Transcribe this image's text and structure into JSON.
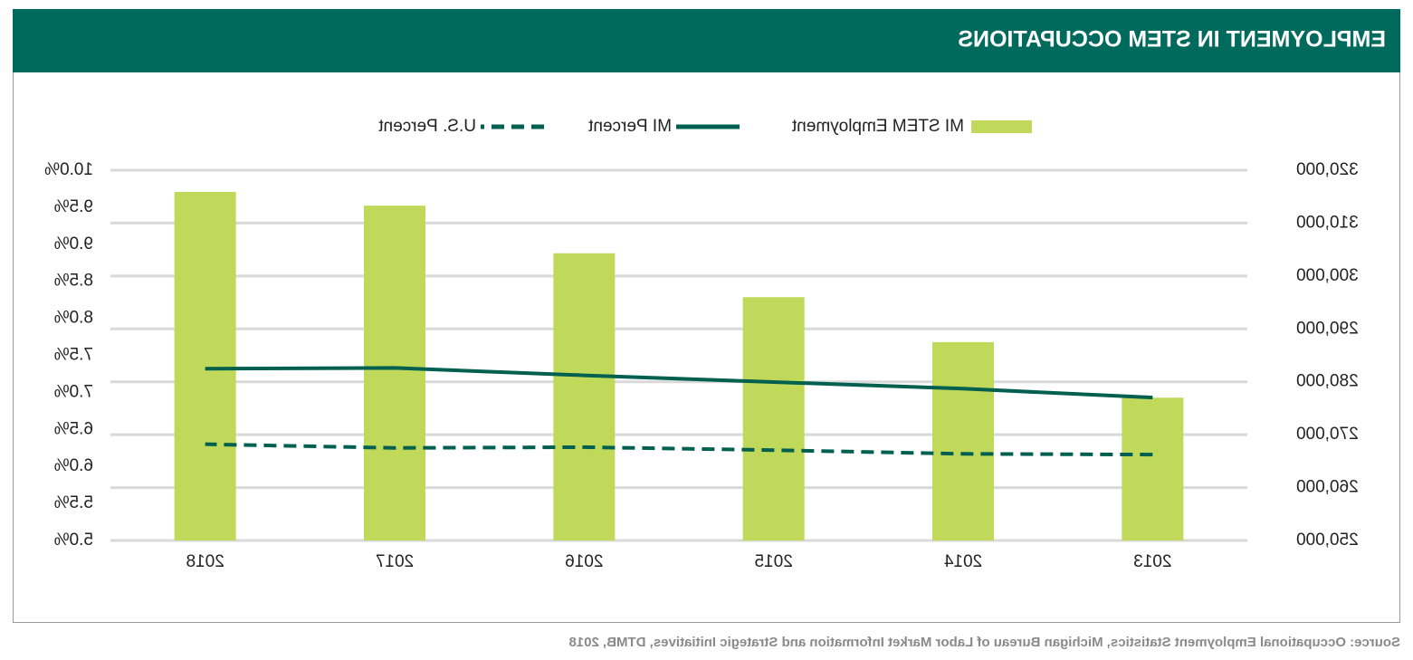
{
  "chart_data": {
    "type": "bar-line",
    "title": "EMPLOYMENT IN STEM OCCUPATIONS",
    "source": "Source: Occupational Employment Statistics, Michigan Bureau of Labor Market Information and Strategic Initiatives, DTMB, 2018",
    "categories": [
      "2013",
      "2014",
      "2015",
      "2016",
      "2017",
      "2018"
    ],
    "series": [
      {
        "name": "MI STEM Employment",
        "type": "bar",
        "color": "#c1d95a",
        "values": [
          277000,
          287500,
          296000,
          304300,
          313300,
          315900
        ]
      },
      {
        "name": "MI Percent",
        "type": "line",
        "axis": "y2",
        "color": "#00604f",
        "dashed": false,
        "values": [
          6.93,
          7.05,
          7.14,
          7.23,
          7.33,
          7.32
        ]
      },
      {
        "name": "U.S. Percent",
        "type": "line",
        "axis": "y2",
        "color": "#00604f",
        "dashed": true,
        "values": [
          6.16,
          6.17,
          6.22,
          6.26,
          6.25,
          6.3
        ]
      }
    ],
    "ylim": [
      250000,
      320000
    ],
    "yticks": [
      {
        "value": 250000,
        "label": "250,000"
      },
      {
        "value": 260000,
        "label": "260,000"
      },
      {
        "value": 270000,
        "label": "270,000"
      },
      {
        "value": 280000,
        "label": "280,000"
      },
      {
        "value": 290000,
        "label": "290,000"
      },
      {
        "value": 300000,
        "label": "300,000"
      },
      {
        "value": 310000,
        "label": "310,000"
      },
      {
        "value": 320000,
        "label": "320,000"
      }
    ],
    "y2lim": [
      5,
      10
    ],
    "y2ticks": [
      {
        "value": 5,
        "label": "5.0%"
      },
      {
        "value": 5.5,
        "label": "5.5%"
      },
      {
        "value": 6,
        "label": "6.0%"
      },
      {
        "value": 6.5,
        "label": "6.5%"
      },
      {
        "value": 7,
        "label": "7.0%"
      },
      {
        "value": 7.5,
        "label": "7.5%"
      },
      {
        "value": 8,
        "label": "8.0%"
      },
      {
        "value": 8.5,
        "label": "8.5%"
      },
      {
        "value": 9,
        "label": "9.0%"
      },
      {
        "value": 9.5,
        "label": "9.5%"
      },
      {
        "value": 10,
        "label": "10.0%"
      }
    ],
    "grid": true
  }
}
